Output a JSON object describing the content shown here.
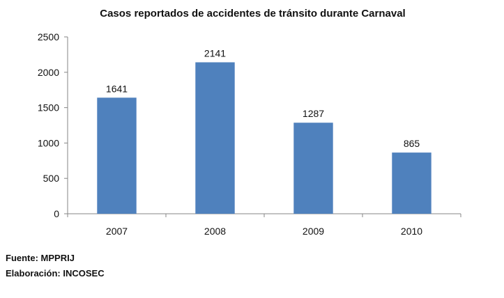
{
  "chart_data": {
    "type": "bar",
    "title": "Casos reportados de accidentes de tránsito durante Carnaval",
    "categories": [
      "2007",
      "2008",
      "2009",
      "2010"
    ],
    "values": [
      1641,
      2141,
      1287,
      865
    ],
    "data_labels": [
      "1641",
      "2141",
      "1287",
      "865"
    ],
    "ylim": [
      0,
      2500
    ],
    "yticks": [
      "0",
      "500",
      "1000",
      "1500",
      "2000",
      "2500"
    ],
    "grid": false,
    "bar_color": "#4F81BD",
    "xlabel": "",
    "ylabel": ""
  },
  "footer": {
    "source": "Fuente: MPPRIJ",
    "elaboration": "Elaboración: INCOSEC"
  }
}
